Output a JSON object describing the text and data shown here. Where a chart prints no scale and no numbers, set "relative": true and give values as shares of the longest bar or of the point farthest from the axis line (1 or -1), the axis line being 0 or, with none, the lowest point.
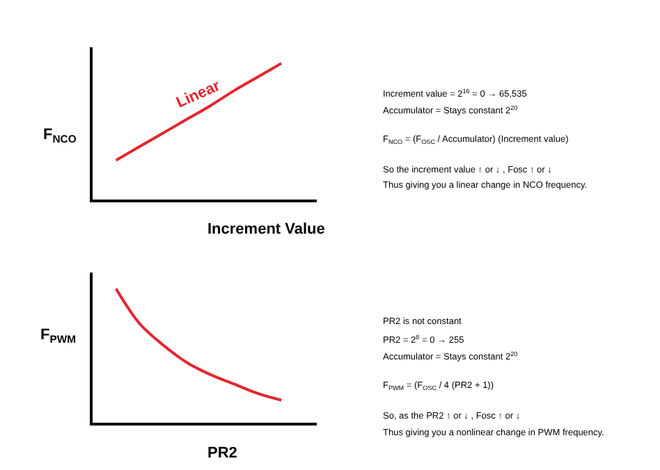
{
  "chart_data": [
    {
      "type": "line",
      "relative": true,
      "xlabel": "Increment Value",
      "ylabel": "F$_{NCO}$",
      "categories": [
        null,
        null,
        null,
        null,
        null,
        null,
        null,
        null
      ],
      "series": [
        {
          "color": "#e3262f",
          "values": [
            0.29,
            0.39,
            0.49,
            0.59,
            0.69,
            0.8,
            0.9,
            1.0
          ]
        }
      ],
      "annotations": [
        "Linear"
      ]
    },
    {
      "type": "other",
      "annotations": [
        "Increment value = 2$^{16}$ = 0 → 65,535",
        "Accumulator = Stays constant 2$^{20}$",
        "F$_{NCO}$ = (F$_{OSC}$ / Accumulator) (Increment value)",
        "So the increment value ↑ or ↓ , Fosc ↑ or ↓",
        "Thus giving you a linear change in NCO frequency."
      ]
    },
    {
      "type": "line",
      "relative": true,
      "xlabel": "PR2",
      "ylabel": "F$_{PWM}$",
      "categories": [
        null,
        null,
        null,
        null,
        null,
        null,
        null,
        null
      ],
      "series": [
        {
          "color": "#e3262f",
          "values": [
            1.0,
            0.74,
            0.58,
            0.45,
            0.36,
            0.29,
            0.22,
            0.17
          ]
        }
      ]
    },
    {
      "type": "other",
      "annotations": [
        "PR2 is not constant",
        "PR2 = 2$^{8}$ = 0 → 255",
        "Accumulator = Stays constant 2$^{20}$",
        "F$_{PWM}$ = (F$_{OSC}$ / 4 (PR2 + 1))",
        "So, as the PR2 ↑ or ↓ , Fosc ↑ or ↓",
        "Thus giving you a nonlinear change in PWM frequency."
      ]
    }
  ]
}
